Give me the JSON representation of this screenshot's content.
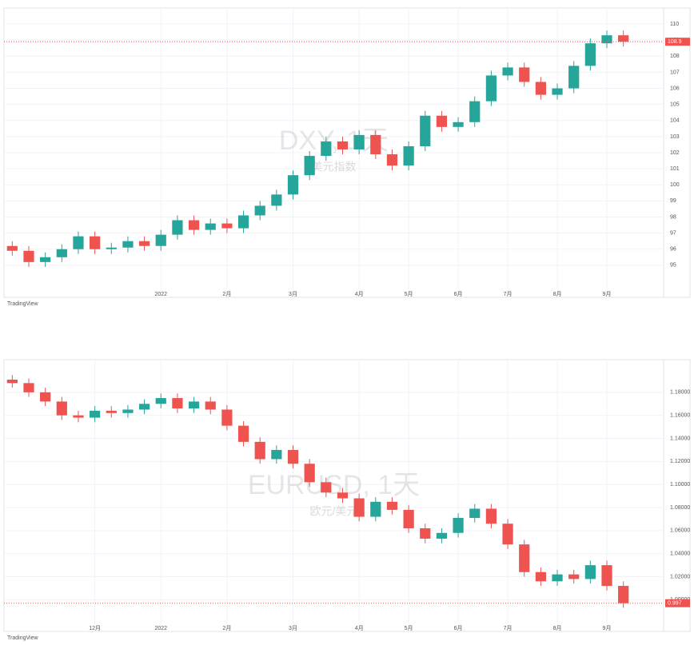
{
  "chart_data": [
    {
      "type": "candlestick",
      "title": "DXY, 1天",
      "subtitle": "美元指数",
      "source": "TradingView",
      "categories": [
        null,
        null,
        null,
        null,
        null,
        null,
        null,
        null,
        null,
        "2022",
        null,
        null,
        null,
        "2月",
        null,
        null,
        null,
        "3月",
        null,
        null,
        null,
        "4月",
        null,
        null,
        "5月",
        null,
        null,
        "6月",
        null,
        null,
        "7月",
        null,
        null,
        "8月",
        null,
        null,
        "9月",
        null
      ],
      "open": [
        96.2,
        95.9,
        95.2,
        95.5,
        96.0,
        96.8,
        96.0,
        96.1,
        96.5,
        96.2,
        96.9,
        97.8,
        97.2,
        97.6,
        97.3,
        98.1,
        98.7,
        99.4,
        100.6,
        101.8,
        102.7,
        102.2,
        103.1,
        101.9,
        101.2,
        102.4,
        104.3,
        103.6,
        103.9,
        105.2,
        106.8,
        107.3,
        106.4,
        105.6,
        106.0,
        107.4,
        108.8,
        109.3
      ],
      "high": [
        96.5,
        96.2,
        95.8,
        96.3,
        97.1,
        97.1,
        96.4,
        96.8,
        96.8,
        97.2,
        98.1,
        98.1,
        97.9,
        97.9,
        98.4,
        99.0,
        99.7,
        100.9,
        102.1,
        103.0,
        103.0,
        103.4,
        103.4,
        102.2,
        102.7,
        104.6,
        104.6,
        104.2,
        105.5,
        107.1,
        107.6,
        107.6,
        106.7,
        106.3,
        107.7,
        109.1,
        109.6,
        109.6
      ],
      "low": [
        95.6,
        94.9,
        94.9,
        95.2,
        95.7,
        95.7,
        95.7,
        95.8,
        95.9,
        95.9,
        96.6,
        96.9,
        96.9,
        97.0,
        97.0,
        97.8,
        98.4,
        99.1,
        100.3,
        101.5,
        101.9,
        101.9,
        101.6,
        100.9,
        100.9,
        102.1,
        103.3,
        103.3,
        103.6,
        104.9,
        106.5,
        106.1,
        105.3,
        105.3,
        105.7,
        107.1,
        108.5,
        108.6
      ],
      "close": [
        95.9,
        95.2,
        95.5,
        96.0,
        96.8,
        96.0,
        96.1,
        96.5,
        96.2,
        96.9,
        97.8,
        97.2,
        97.6,
        97.3,
        98.1,
        98.7,
        99.4,
        100.6,
        101.8,
        102.7,
        102.2,
        103.1,
        101.9,
        101.2,
        102.4,
        104.3,
        103.6,
        103.9,
        105.2,
        106.8,
        107.3,
        106.4,
        105.6,
        106.0,
        107.4,
        108.8,
        109.3,
        108.9
      ],
      "up_color": "#26a69a",
      "down_color": "#ef5350",
      "ylim": [
        94,
        110.5
      ],
      "yticks": [
        95,
        96,
        97,
        98,
        99,
        100,
        101,
        102,
        103,
        104,
        105,
        106,
        107,
        108,
        109,
        110
      ],
      "grid": true
    },
    {
      "type": "candlestick",
      "title": "EURUSD, 1天",
      "subtitle": "欧元/美元",
      "source": "TradingView",
      "categories": [
        null,
        null,
        null,
        null,
        null,
        "12月",
        null,
        null,
        null,
        "2022",
        null,
        null,
        null,
        "2月",
        null,
        null,
        null,
        "3月",
        null,
        null,
        null,
        "4月",
        null,
        null,
        "5月",
        null,
        null,
        "6月",
        null,
        null,
        "7月",
        null,
        null,
        "8月",
        null,
        null,
        "9月",
        null
      ],
      "open": [
        1.191,
        1.188,
        1.18,
        1.172,
        1.16,
        1.158,
        1.164,
        1.162,
        1.165,
        1.17,
        1.175,
        1.166,
        1.172,
        1.165,
        1.151,
        1.137,
        1.122,
        1.13,
        1.118,
        1.102,
        1.093,
        1.088,
        1.072,
        1.085,
        1.078,
        1.062,
        1.053,
        1.058,
        1.071,
        1.079,
        1.066,
        1.048,
        1.024,
        1.016,
        1.022,
        1.018,
        1.03,
        1.012
      ],
      "high": [
        1.195,
        1.192,
        1.184,
        1.176,
        1.164,
        1.168,
        1.168,
        1.169,
        1.174,
        1.179,
        1.179,
        1.176,
        1.176,
        1.169,
        1.155,
        1.141,
        1.134,
        1.134,
        1.122,
        1.106,
        1.097,
        1.092,
        1.089,
        1.089,
        1.082,
        1.066,
        1.062,
        1.075,
        1.083,
        1.083,
        1.07,
        1.052,
        1.028,
        1.026,
        1.026,
        1.034,
        1.034,
        1.016
      ],
      "low": [
        1.184,
        1.176,
        1.168,
        1.156,
        1.154,
        1.154,
        1.158,
        1.158,
        1.161,
        1.166,
        1.162,
        1.162,
        1.161,
        1.147,
        1.133,
        1.118,
        1.118,
        1.114,
        1.098,
        1.089,
        1.084,
        1.068,
        1.068,
        1.074,
        1.058,
        1.049,
        1.049,
        1.054,
        1.067,
        1.062,
        1.044,
        1.02,
        1.012,
        1.012,
        1.014,
        1.014,
        1.008,
        0.993
      ],
      "close": [
        1.188,
        1.18,
        1.172,
        1.16,
        1.158,
        1.164,
        1.162,
        1.165,
        1.17,
        1.175,
        1.166,
        1.172,
        1.165,
        1.151,
        1.137,
        1.122,
        1.13,
        1.118,
        1.102,
        1.093,
        1.088,
        1.072,
        1.085,
        1.078,
        1.062,
        1.053,
        1.058,
        1.071,
        1.079,
        1.066,
        1.048,
        1.024,
        1.016,
        1.022,
        1.018,
        1.03,
        1.012,
        0.997
      ],
      "up_color": "#26a69a",
      "down_color": "#ef5350",
      "ylim": [
        0.985,
        1.2
      ],
      "yticks": [
        {
          "value": 1.0,
          "label": "1.00000"
        },
        {
          "value": 1.02,
          "label": "1.02000"
        },
        {
          "value": 1.04,
          "label": "1.04000"
        },
        {
          "value": 1.06,
          "label": "1.06000"
        },
        {
          "value": 1.08,
          "label": "1.08000"
        },
        {
          "value": 1.1,
          "label": "1.10000"
        },
        {
          "value": 1.12,
          "label": "1.12000"
        },
        {
          "value": 1.14,
          "label": "1.14000"
        },
        {
          "value": 1.16,
          "label": "1.16000"
        },
        {
          "value": 1.18,
          "label": "1.18000"
        }
      ],
      "grid": true
    }
  ]
}
